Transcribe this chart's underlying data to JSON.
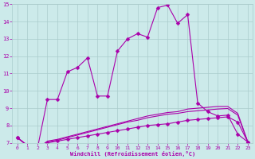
{
  "xlabel": "Windchill (Refroidissement éolien,°C)",
  "xlim": [
    -0.5,
    23.5
  ],
  "ylim": [
    7,
    15
  ],
  "yticks": [
    7,
    8,
    9,
    10,
    11,
    12,
    13,
    14,
    15
  ],
  "xticks": [
    0,
    1,
    2,
    3,
    4,
    5,
    6,
    7,
    8,
    9,
    10,
    11,
    12,
    13,
    14,
    15,
    16,
    17,
    18,
    19,
    20,
    21,
    22,
    23
  ],
  "background_color": "#cceaea",
  "grid_color": "#aacccc",
  "line_color": "#aa00aa",
  "series1_x": [
    0,
    1,
    2,
    3,
    4,
    5,
    6,
    7,
    8,
    9,
    10,
    11,
    12,
    13,
    14,
    15,
    16,
    17,
    18,
    19,
    20,
    21,
    22,
    23
  ],
  "series1_y": [
    7.3,
    6.85,
    6.65,
    9.5,
    9.5,
    11.1,
    11.35,
    11.9,
    9.7,
    9.7,
    12.3,
    13.0,
    13.3,
    13.1,
    14.8,
    14.95,
    13.9,
    14.4,
    9.3,
    8.8,
    8.55,
    8.6,
    7.5,
    7.05
  ],
  "series2_x": [
    0,
    1,
    2,
    3,
    4,
    5,
    6,
    7,
    8,
    9,
    10,
    11,
    12,
    13,
    14,
    15,
    16,
    17,
    18,
    19,
    20,
    21,
    22,
    23
  ],
  "series2_y": [
    7.3,
    6.85,
    6.65,
    7.0,
    7.1,
    7.2,
    7.3,
    7.4,
    7.5,
    7.6,
    7.7,
    7.8,
    7.9,
    8.0,
    8.05,
    8.1,
    8.2,
    8.3,
    8.35,
    8.4,
    8.45,
    8.5,
    8.2,
    7.05
  ],
  "series3_x": [
    0,
    1,
    2,
    3,
    4,
    5,
    6,
    7,
    8,
    9,
    10,
    11,
    12,
    13,
    14,
    15,
    16,
    17,
    18,
    19,
    20,
    21,
    22,
    23
  ],
  "series3_y": [
    7.3,
    6.85,
    6.65,
    7.05,
    7.15,
    7.3,
    7.45,
    7.6,
    7.75,
    7.9,
    8.05,
    8.2,
    8.3,
    8.45,
    8.55,
    8.65,
    8.7,
    8.8,
    8.85,
    8.9,
    8.95,
    8.98,
    8.6,
    7.05
  ],
  "series4_x": [
    0,
    1,
    2,
    3,
    4,
    5,
    6,
    7,
    8,
    9,
    10,
    11,
    12,
    13,
    14,
    15,
    16,
    17,
    18,
    19,
    20,
    21,
    22,
    23
  ],
  "series4_y": [
    7.3,
    6.85,
    6.65,
    7.1,
    7.2,
    7.35,
    7.5,
    7.65,
    7.8,
    7.95,
    8.1,
    8.25,
    8.4,
    8.55,
    8.65,
    8.75,
    8.8,
    8.95,
    9.0,
    9.05,
    9.1,
    9.1,
    8.7,
    7.05
  ]
}
